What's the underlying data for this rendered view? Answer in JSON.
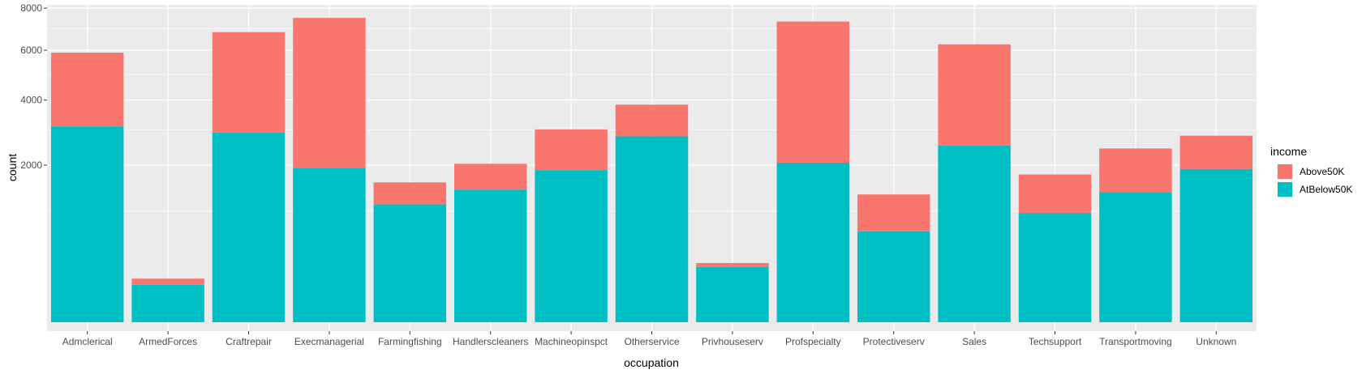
{
  "chart_data": {
    "type": "bar",
    "stacked": true,
    "title": "",
    "xlabel": "occupation",
    "ylabel": "count",
    "ylim": [
      0,
      8000
    ],
    "y_scale": "sqrt",
    "y_ticks": [
      2000,
      4000,
      6000,
      8000
    ],
    "grid": true,
    "legend_position": "right",
    "legend_title": "income",
    "categories": [
      "Admclerical",
      "ArmedForces",
      "Craftrepair",
      "Execmanagerial",
      "Farmingfishing",
      "Handlerscleaners",
      "Machineopinspct",
      "Otherservice",
      "Privhouseserv",
      "Profspecialty",
      "Protectiveserv",
      "Sales",
      "Techsupport",
      "Transportmoving",
      "Unknown"
    ],
    "series": [
      {
        "name": "Above50K",
        "color": "#F8766D",
        "values": [
          2781,
          41,
          3908,
          5574,
          457,
          609,
          1137,
          1036,
          36,
          5268,
          654,
          3731,
          802,
          1080,
          915
        ]
      },
      {
        "name": "AtBelow50K",
        "color": "#00BFC4",
        "values": [
          3109,
          113,
          2914,
          1934,
          1127,
          1426,
          1876,
          2800,
          248,
          2062,
          669,
          2530,
          967,
          1368,
          1904
        ]
      }
    ]
  }
}
